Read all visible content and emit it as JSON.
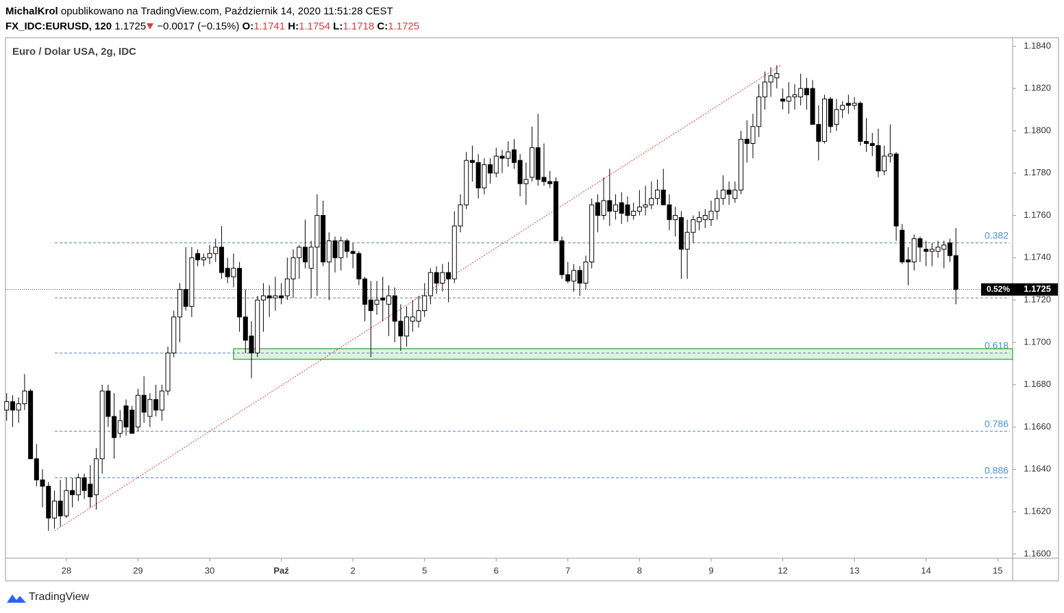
{
  "header": {
    "author": "MichalKrol",
    "published": "opublikowano na TradingView.com, Październik 14, 2020 11:51:28 CEST",
    "symbol": "FX_IDC:EURUSD, 120",
    "last": 1.1725,
    "change": "−0.0017 (−0.15%)",
    "open_label": "O:",
    "open": 1.1741,
    "high_label": "H:",
    "high": 1.1754,
    "low_label": "L:",
    "low": 1.1718,
    "close_label": "C:",
    "close": 1.1725
  },
  "footer": {
    "brand": "TradingView"
  },
  "chart_data": {
    "type": "candlestick",
    "title": "Euro / Dolar USA, 2g, IDC",
    "up_color": "#ffffff",
    "down_color": "#000000",
    "wick_color": "#000000",
    "xlim": [
      -0.2,
      168.5
    ],
    "xticks": [
      {
        "value": 10,
        "label": "28"
      },
      {
        "value": 22,
        "label": "29"
      },
      {
        "value": 34,
        "label": "30"
      },
      {
        "value": 46,
        "label": "Paź"
      },
      {
        "value": 58,
        "label": "2"
      },
      {
        "value": 70,
        "label": "5"
      },
      {
        "value": 82,
        "label": "6"
      },
      {
        "value": 94,
        "label": "7"
      },
      {
        "value": 106,
        "label": "8"
      },
      {
        "value": 118,
        "label": "9"
      },
      {
        "value": 130,
        "label": "12"
      },
      {
        "value": 142,
        "label": "13"
      },
      {
        "value": 154,
        "label": "14"
      },
      {
        "value": 166,
        "label": "15"
      }
    ],
    "ylim": [
      1.1598,
      1.1844
    ],
    "yticks": [
      {
        "value": 1.16,
        "label": "1.1600"
      },
      {
        "value": 1.162,
        "label": "1.1620"
      },
      {
        "value": 1.164,
        "label": "1.1640"
      },
      {
        "value": 1.166,
        "label": "1.1660"
      },
      {
        "value": 1.168,
        "label": "1.1680"
      },
      {
        "value": 1.17,
        "label": "1.1700"
      },
      {
        "value": 1.172,
        "label": "1.1720"
      },
      {
        "value": 1.174,
        "label": "1.1740"
      },
      {
        "value": 1.176,
        "label": "1.1760"
      },
      {
        "value": 1.178,
        "label": "1.1780"
      },
      {
        "value": 1.18,
        "label": "1.1800"
      },
      {
        "value": 1.182,
        "label": "1.1820"
      },
      {
        "value": 1.184,
        "label": "1.1840"
      }
    ],
    "fib_levels": [
      {
        "label": "0.382",
        "value": 1.1747
      },
      {
        "label": "0.618",
        "value": 1.1695
      },
      {
        "label": "0.786",
        "value": 1.1658
      },
      {
        "label": "0.886",
        "value": 1.1636
      }
    ],
    "mid_level": 1.1721,
    "zone": {
      "x_start": 38,
      "low": 1.1692,
      "high": 1.1697
    },
    "trendline": [
      {
        "x": 8.05,
        "y": 1.1611
      },
      {
        "x": 129.7,
        "y": 1.1831
      }
    ],
    "last_price": 1.1725,
    "last_price_note": "0.52%",
    "ohlc": [
      [
        1.1668,
        1.1676,
        1.1663,
        1.1672
      ],
      [
        1.1672,
        1.1675,
        1.166,
        1.1668
      ],
      [
        1.1668,
        1.1674,
        1.1662,
        1.1671
      ],
      [
        1.1671,
        1.1685,
        1.1668,
        1.1677
      ],
      [
        1.1677,
        1.1678,
        1.1645,
        1.1645
      ],
      [
        1.1645,
        1.1652,
        1.1632,
        1.1635
      ],
      [
        1.1635,
        1.164,
        1.1622,
        1.1632
      ],
      [
        1.1632,
        1.1634,
        1.1611,
        1.1617
      ],
      [
        1.1617,
        1.163,
        1.1612,
        1.1625
      ],
      [
        1.1625,
        1.1635,
        1.1613,
        1.1618
      ],
      [
        1.1618,
        1.1636,
        1.1617,
        1.163
      ],
      [
        1.163,
        1.1636,
        1.1622,
        1.1628
      ],
      [
        1.1628,
        1.1638,
        1.1625,
        1.1636
      ],
      [
        1.1636,
        1.1638,
        1.1626,
        1.163
      ],
      [
        1.1633,
        1.1642,
        1.1622,
        1.1627
      ],
      [
        1.1628,
        1.165,
        1.1621,
        1.1645
      ],
      [
        1.1645,
        1.168,
        1.1638,
        1.1677
      ],
      [
        1.1677,
        1.168,
        1.166,
        1.1665
      ],
      [
        1.1665,
        1.1676,
        1.1645,
        1.1655
      ],
      [
        1.1657,
        1.1668,
        1.1655,
        1.1663
      ],
      [
        1.167,
        1.1673,
        1.1656,
        1.166
      ],
      [
        1.1668,
        1.167,
        1.1657,
        1.1657
      ],
      [
        1.166,
        1.1678,
        1.1658,
        1.1675
      ],
      [
        1.1675,
        1.1684,
        1.1662,
        1.1667
      ],
      [
        1.1665,
        1.1676,
        1.166,
        1.1673
      ],
      [
        1.1673,
        1.168,
        1.1665,
        1.1668
      ],
      [
        1.1668,
        1.168,
        1.1663,
        1.1677
      ],
      [
        1.1677,
        1.1698,
        1.1675,
        1.1695
      ],
      [
        1.1695,
        1.1715,
        1.1693,
        1.1712
      ],
      [
        1.1712,
        1.1728,
        1.17,
        1.1725
      ],
      [
        1.1725,
        1.1745,
        1.1715,
        1.1717
      ],
      [
        1.1717,
        1.1745,
        1.1712,
        1.174
      ],
      [
        1.1742,
        1.1744,
        1.1736,
        1.1739
      ],
      [
        1.1739,
        1.1742,
        1.1736,
        1.174
      ],
      [
        1.174,
        1.1746,
        1.1737,
        1.1742
      ],
      [
        1.1742,
        1.1749,
        1.1738,
        1.1745
      ],
      [
        1.1745,
        1.1755,
        1.173,
        1.1733
      ],
      [
        1.1735,
        1.174,
        1.1728,
        1.1731
      ],
      [
        1.1731,
        1.1742,
        1.1726,
        1.1735
      ],
      [
        1.1735,
        1.1738,
        1.1705,
        1.1712
      ],
      [
        1.1712,
        1.1725,
        1.1695,
        1.1701
      ],
      [
        1.1703,
        1.171,
        1.1683,
        1.1695
      ],
      [
        1.1695,
        1.1722,
        1.1693,
        1.172
      ],
      [
        1.172,
        1.1728,
        1.1705,
        1.1722
      ],
      [
        1.1722,
        1.1727,
        1.1712,
        1.1721
      ],
      [
        1.1721,
        1.1731,
        1.1715,
        1.1722
      ],
      [
        1.1722,
        1.1728,
        1.1718,
        1.1721
      ],
      [
        1.1722,
        1.174,
        1.172,
        1.173
      ],
      [
        1.173,
        1.1744,
        1.1721,
        1.174
      ],
      [
        1.174,
        1.1746,
        1.173,
        1.1745
      ],
      [
        1.1745,
        1.1758,
        1.1735,
        1.1738
      ],
      [
        1.1735,
        1.1748,
        1.1721,
        1.1745
      ],
      [
        1.1745,
        1.177,
        1.1722,
        1.176
      ],
      [
        1.176,
        1.1767,
        1.1736,
        1.1738
      ],
      [
        1.1738,
        1.1752,
        1.172,
        1.1748
      ],
      [
        1.1748,
        1.175,
        1.1733,
        1.174
      ],
      [
        1.174,
        1.175,
        1.1734,
        1.1748
      ],
      [
        1.1748,
        1.1749,
        1.174,
        1.1743
      ],
      [
        1.1743,
        1.1747,
        1.1735,
        1.1742
      ],
      [
        1.1742,
        1.1743,
        1.1727,
        1.173
      ],
      [
        1.173,
        1.1731,
        1.171,
        1.1718
      ],
      [
        1.172,
        1.1729,
        1.1693,
        1.1715
      ],
      [
        1.1718,
        1.1729,
        1.1713,
        1.172
      ],
      [
        1.1721,
        1.1731,
        1.171,
        1.172
      ],
      [
        1.1718,
        1.1727,
        1.1703,
        1.1722
      ],
      [
        1.1722,
        1.1726,
        1.17,
        1.171
      ],
      [
        1.171,
        1.1718,
        1.1696,
        1.1703
      ],
      [
        1.1703,
        1.1717,
        1.1698,
        1.1712
      ],
      [
        1.171,
        1.172,
        1.1705,
        1.1712
      ],
      [
        1.171,
        1.1722,
        1.1707,
        1.1715
      ],
      [
        1.1715,
        1.1728,
        1.1712,
        1.1722
      ],
      [
        1.1722,
        1.1735,
        1.1718,
        1.1733
      ],
      [
        1.1733,
        1.1736,
        1.1723,
        1.1728
      ],
      [
        1.1728,
        1.1737,
        1.1724,
        1.1733
      ],
      [
        1.1733,
        1.1738,
        1.1719,
        1.173
      ],
      [
        1.173,
        1.1762,
        1.1728,
        1.1755
      ],
      [
        1.1755,
        1.177,
        1.1752,
        1.1765
      ],
      [
        1.1765,
        1.179,
        1.1763,
        1.1786
      ],
      [
        1.1786,
        1.1793,
        1.1776,
        1.1785
      ],
      [
        1.1785,
        1.1789,
        1.1768,
        1.1773
      ],
      [
        1.1773,
        1.1787,
        1.177,
        1.1784
      ],
      [
        1.1784,
        1.1787,
        1.1775,
        1.178
      ],
      [
        1.178,
        1.1792,
        1.1778,
        1.1788
      ],
      [
        1.1788,
        1.1791,
        1.178,
        1.1787
      ],
      [
        1.1787,
        1.1795,
        1.1783,
        1.179
      ],
      [
        1.1791,
        1.1796,
        1.1782,
        1.1785
      ],
      [
        1.1786,
        1.1789,
        1.1769,
        1.1775
      ],
      [
        1.1775,
        1.1785,
        1.1765,
        1.1777
      ],
      [
        1.1778,
        1.1802,
        1.1776,
        1.1792
      ],
      [
        1.1792,
        1.1808,
        1.1774,
        1.1777
      ],
      [
        1.1778,
        1.1794,
        1.1774,
        1.1776
      ],
      [
        1.1776,
        1.1781,
        1.1773,
        1.1775
      ],
      [
        1.1776,
        1.1778,
        1.1748,
        1.1748
      ],
      [
        1.1748,
        1.175,
        1.173,
        1.1732
      ],
      [
        1.1732,
        1.1738,
        1.1728,
        1.1729
      ],
      [
        1.1729,
        1.1737,
        1.1724,
        1.1734
      ],
      [
        1.1734,
        1.1736,
        1.1722,
        1.1728
      ],
      [
        1.1728,
        1.1741,
        1.1725,
        1.1738
      ],
      [
        1.1738,
        1.1768,
        1.1735,
        1.1765
      ],
      [
        1.1766,
        1.177,
        1.1752,
        1.176
      ],
      [
        1.176,
        1.1778,
        1.1758,
        1.1767
      ],
      [
        1.1767,
        1.1782,
        1.1755,
        1.1762
      ],
      [
        1.1762,
        1.177,
        1.1758,
        1.1765
      ],
      [
        1.1766,
        1.1771,
        1.1756,
        1.1761
      ],
      [
        1.1765,
        1.1769,
        1.1757,
        1.176
      ],
      [
        1.176,
        1.1766,
        1.1758,
        1.1762
      ],
      [
        1.1762,
        1.1772,
        1.176,
        1.1764
      ],
      [
        1.1764,
        1.1774,
        1.176,
        1.1765
      ],
      [
        1.1765,
        1.1776,
        1.1763,
        1.1768
      ],
      [
        1.1768,
        1.1777,
        1.1765,
        1.1772
      ],
      [
        1.1772,
        1.1782,
        1.1765,
        1.1765
      ],
      [
        1.1765,
        1.177,
        1.1753,
        1.1758
      ],
      [
        1.1758,
        1.1764,
        1.175,
        1.176
      ],
      [
        1.1759,
        1.1762,
        1.173,
        1.1744
      ],
      [
        1.1744,
        1.1758,
        1.173,
        1.1752
      ],
      [
        1.1752,
        1.176,
        1.1747,
        1.1758
      ],
      [
        1.1757,
        1.1762,
        1.1753,
        1.1759
      ],
      [
        1.1758,
        1.1763,
        1.1754,
        1.176
      ],
      [
        1.1758,
        1.1767,
        1.1755,
        1.1762
      ],
      [
        1.1762,
        1.1772,
        1.1758,
        1.1768
      ],
      [
        1.1768,
        1.1779,
        1.1765,
        1.1772
      ],
      [
        1.1772,
        1.1776,
        1.1765,
        1.177
      ],
      [
        1.1768,
        1.1776,
        1.1766,
        1.1772
      ],
      [
        1.1772,
        1.18,
        1.177,
        1.1796
      ],
      [
        1.1796,
        1.1805,
        1.1785,
        1.1794
      ],
      [
        1.1794,
        1.1808,
        1.1787,
        1.1802
      ],
      [
        1.1802,
        1.1822,
        1.1797,
        1.1816
      ],
      [
        1.1816,
        1.1828,
        1.181,
        1.1823
      ],
      [
        1.1823,
        1.183,
        1.1816,
        1.1826
      ],
      [
        1.1825,
        1.1831,
        1.182,
        1.1827
      ],
      [
        1.1815,
        1.182,
        1.181,
        1.1814
      ],
      [
        1.1814,
        1.1823,
        1.1808,
        1.1816
      ],
      [
        1.1816,
        1.1822,
        1.181,
        1.1817
      ],
      [
        1.1816,
        1.1827,
        1.1812,
        1.182
      ],
      [
        1.182,
        1.1825,
        1.181,
        1.1817
      ],
      [
        1.182,
        1.1824,
        1.1803,
        1.1803
      ],
      [
        1.1803,
        1.1812,
        1.1786,
        1.1795
      ],
      [
        1.1795,
        1.1817,
        1.1794,
        1.1815
      ],
      [
        1.1815,
        1.1816,
        1.1799,
        1.1802
      ],
      [
        1.1803,
        1.1815,
        1.18,
        1.181
      ],
      [
        1.181,
        1.1814,
        1.1806,
        1.1812
      ],
      [
        1.1813,
        1.1817,
        1.1808,
        1.1812
      ],
      [
        1.1812,
        1.1816,
        1.181,
        1.1813
      ],
      [
        1.1813,
        1.1814,
        1.1793,
        1.1795
      ],
      [
        1.1795,
        1.1806,
        1.179,
        1.1794
      ],
      [
        1.1794,
        1.1799,
        1.1788,
        1.1793
      ],
      [
        1.1793,
        1.1801,
        1.1778,
        1.1781
      ],
      [
        1.1781,
        1.1793,
        1.1779,
        1.1788
      ],
      [
        1.1788,
        1.1803,
        1.1785,
        1.1789
      ],
      [
        1.1789,
        1.179,
        1.1748,
        1.1755
      ],
      [
        1.1753,
        1.1756,
        1.1737,
        1.1738
      ],
      [
        1.1739,
        1.1745,
        1.1727,
        1.1738
      ],
      [
        1.1738,
        1.1751,
        1.1734,
        1.1749
      ],
      [
        1.1749,
        1.175,
        1.1738,
        1.1745
      ],
      [
        1.1744,
        1.1748,
        1.1736,
        1.1743
      ],
      [
        1.1743,
        1.1747,
        1.1736,
        1.1744
      ],
      [
        1.1743,
        1.1748,
        1.174,
        1.1745
      ],
      [
        1.1744,
        1.1748,
        1.1735,
        1.1746
      ],
      [
        1.1747,
        1.1749,
        1.1738,
        1.1741
      ],
      [
        1.1741,
        1.1754,
        1.1718,
        1.1725
      ]
    ]
  }
}
